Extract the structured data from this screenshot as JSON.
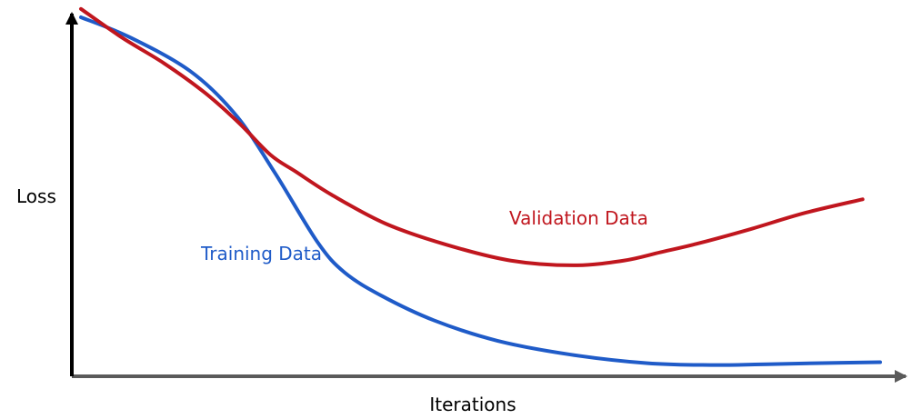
{
  "chart_data": {
    "type": "line",
    "title": "",
    "xlabel": "Iterations",
    "ylabel": "Loss",
    "xlim": [
      0,
      100
    ],
    "ylim": [
      0,
      100
    ],
    "ticks": "none",
    "grid": false,
    "legend": "none",
    "colors": {
      "axis": "#5a5a5a",
      "training": "#1f5bc8",
      "validation": "#c0161e"
    },
    "series": [
      {
        "name": "Training Data",
        "x": [
          0,
          6.1,
          13.7,
          19.4,
          24.3,
          29.6,
          33.0,
          37.7,
          44.2,
          52.1,
          61.2,
          70.9,
          78.8,
          85.1,
          91.9,
          100
        ],
        "y": [
          99.0,
          93.5,
          84.1,
          72.0,
          56.0,
          37.0,
          28.6,
          22.1,
          15.4,
          9.8,
          6.0,
          3.6,
          3.1,
          3.3,
          3.6,
          3.9
        ]
      },
      {
        "name": "Validation Data",
        "x": [
          0,
          5.2,
          10.4,
          15.5,
          19.8,
          23.7,
          26.9,
          31.4,
          38.1,
          45.7,
          53.8,
          61.6,
          67.9,
          72.5,
          77.0,
          83.5,
          90.5,
          97.8
        ],
        "y": [
          101.3,
          93.3,
          86.3,
          78.2,
          69.8,
          61.1,
          56.4,
          50.0,
          42.1,
          36.3,
          31.9,
          30.6,
          31.9,
          34.2,
          36.5,
          40.4,
          45.0,
          48.8
        ]
      }
    ],
    "labels": {
      "training": "Training Data",
      "validation": "Validation Data"
    }
  }
}
